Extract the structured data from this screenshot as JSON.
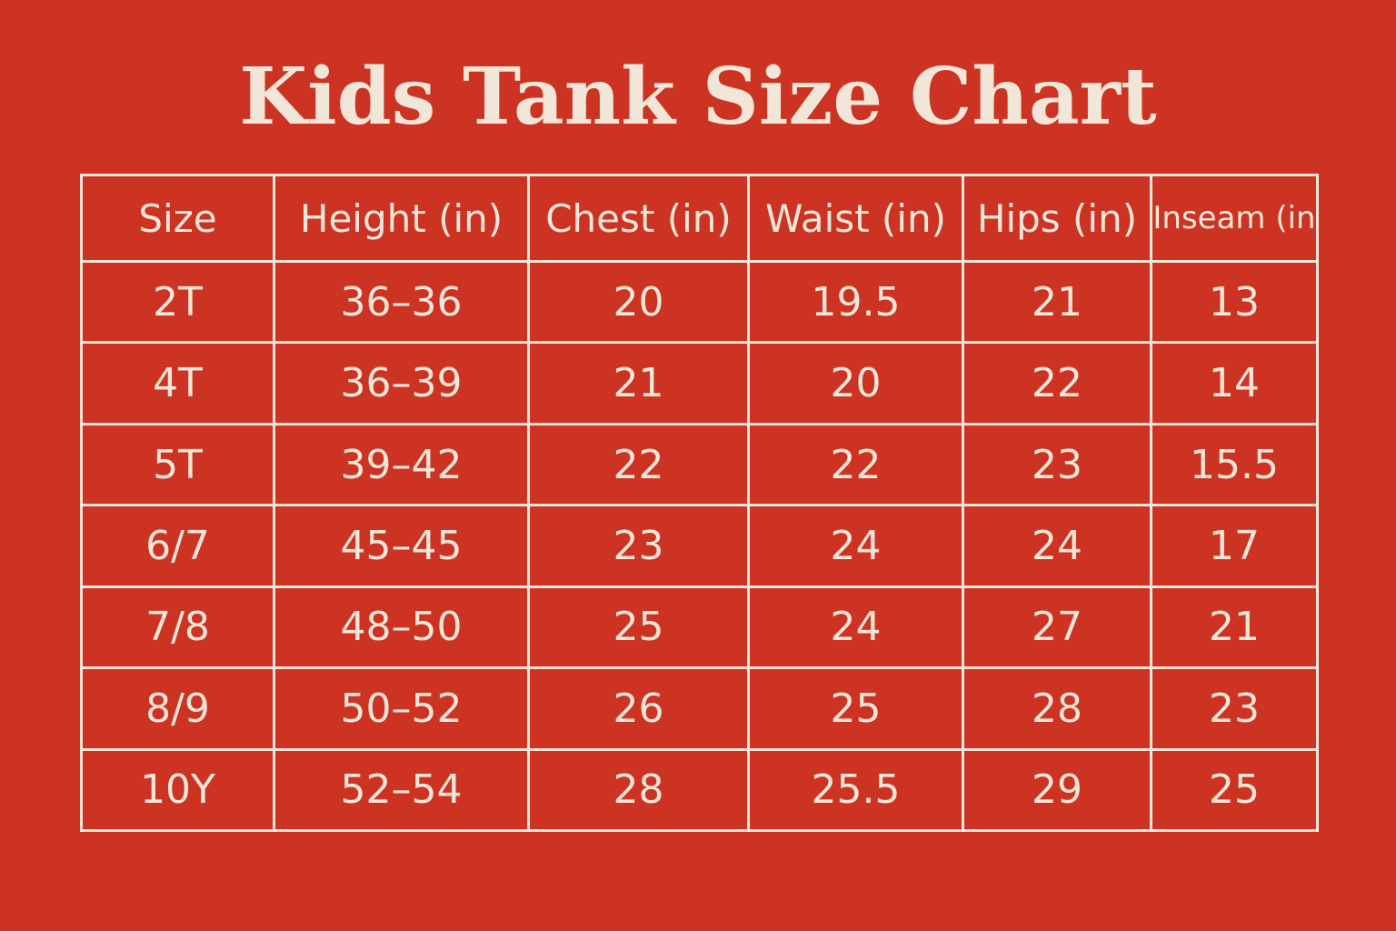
{
  "chart_data": {
    "type": "table",
    "title": "Kids Tank Size Chart",
    "columns": [
      "Size",
      "Height (in)",
      "Chest (in)",
      "Waist (in)",
      "Hips (in)",
      "Inseam (in"
    ],
    "rows": [
      [
        "2T",
        "36–36",
        "20",
        "19.5",
        "21",
        "13"
      ],
      [
        "4T",
        "36–39",
        "21",
        "20",
        "22",
        "14"
      ],
      [
        "5T",
        "39–42",
        "22",
        "22",
        "23",
        "15.5"
      ],
      [
        "6/7",
        "45–45",
        "23",
        "24",
        "24",
        "17"
      ],
      [
        "7/8",
        "48–50",
        "25",
        "24",
        "27",
        "21"
      ],
      [
        "8/9",
        "50–52",
        "26",
        "25",
        "28",
        "23"
      ],
      [
        "10Y",
        "52–54",
        "28",
        "25.5",
        "29",
        "25"
      ]
    ]
  },
  "colors": {
    "background": "#cc3322",
    "text": "#f2e6d8",
    "grid": "#f2e6d8"
  }
}
